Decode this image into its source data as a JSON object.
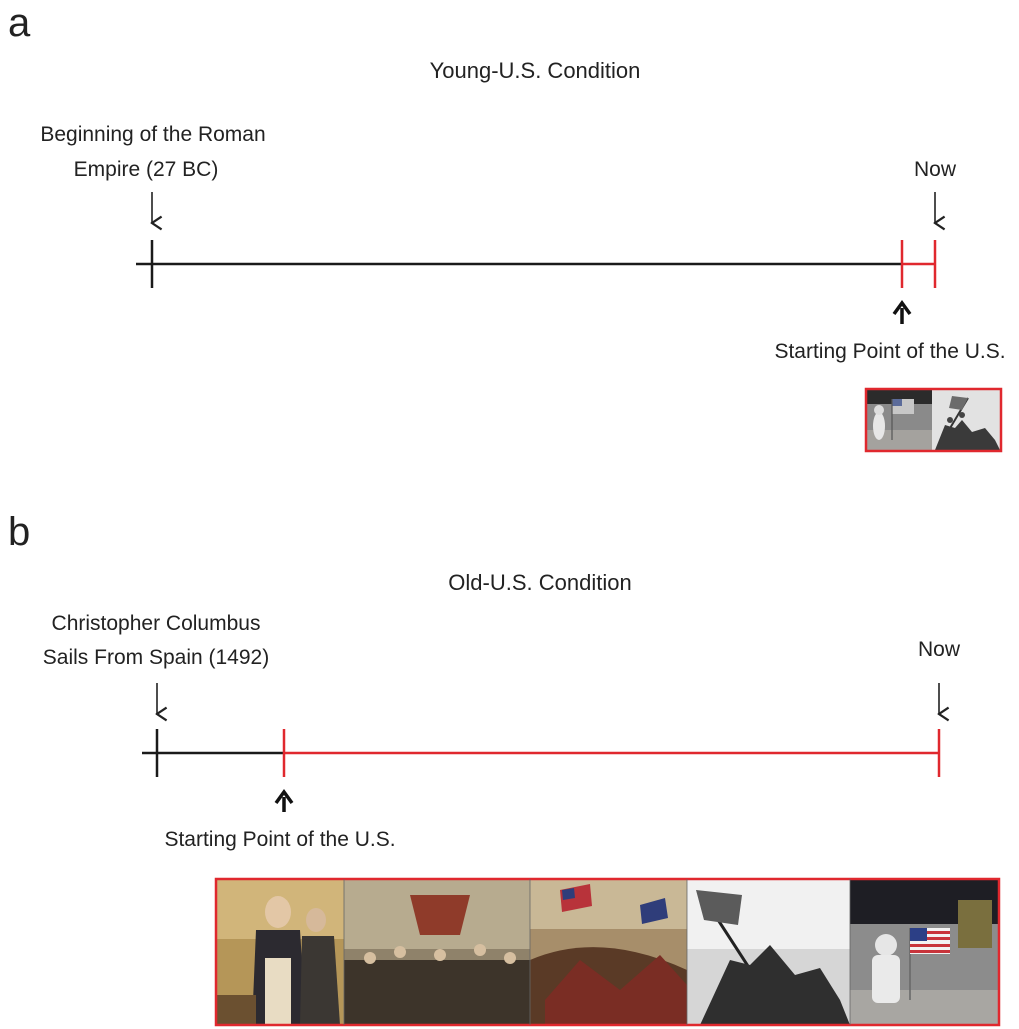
{
  "panel_a": {
    "label": "a",
    "title": "Young-U.S. Condition",
    "start_label_line1": "Beginning of the Roman",
    "start_label_line2": "Empire (27 BC)",
    "now_label": "Now",
    "us_start_label": "Starting Point of the U.S.",
    "photos": [
      "astronaut-flag-photo",
      "iwo-jima-flag-raising-photo"
    ]
  },
  "panel_b": {
    "label": "b",
    "title": "Old-U.S. Condition",
    "start_label_line1": "Christopher Columbus",
    "start_label_line2": "Sails From Spain (1492)",
    "now_label": "Now",
    "us_start_label": "Starting Point of the U.S.",
    "photos": [
      "george-washington-portrait",
      "declaration-of-independence-painting",
      "civil-war-battle-painting",
      "iwo-jima-flag-raising-photo",
      "astronaut-flag-photo"
    ]
  },
  "colors": {
    "timeline_black": "#1a1a1a",
    "us_red": "#e0282e"
  }
}
